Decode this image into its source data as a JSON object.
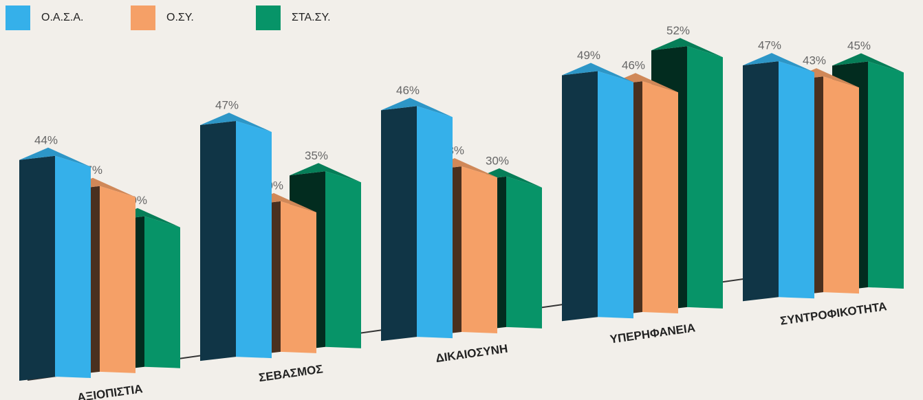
{
  "chart_data": {
    "type": "bar3d",
    "categories": [
      "ΑΞΙΟΠΙΣΤΙΑ",
      "ΣΕΒΑΣΜΟΣ",
      "ΔΙΚΑΙΟΣΥΝΗ",
      "ΥΠΕΡΗΦΑΝΕΙΑ",
      "ΣΥΝΤΡΟΦΙΚΟΤΗΤΑ"
    ],
    "series": [
      {
        "name": "Ο.Α.Σ.Α.",
        "color": "#35b0ea",
        "values": [
          44,
          47,
          46,
          49,
          47
        ],
        "value_labels": [
          "44%",
          "47%",
          "46%",
          "49%",
          "47%"
        ]
      },
      {
        "name": "Ο.ΣΥ.",
        "color": "#f5a067",
        "values": [
          37,
          30,
          33,
          46,
          43
        ],
        "value_labels": [
          "37%",
          "30%",
          "33%",
          "46%",
          "43%"
        ]
      },
      {
        "name": "ΣΤΑ.ΣΥ.",
        "color": "#079468",
        "values": [
          30,
          35,
          30,
          52,
          45
        ],
        "value_labels": [
          "30%",
          "35%",
          "30%",
          "52%",
          "45%"
        ]
      }
    ],
    "legend": "top-left"
  }
}
